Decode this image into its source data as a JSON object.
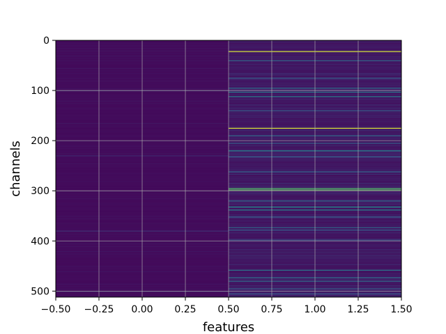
{
  "chart_data": {
    "type": "heatmap",
    "title": "",
    "xlabel": "features",
    "ylabel": "channels",
    "xlim": [
      -0.5,
      1.5
    ],
    "ylim": [
      512,
      0
    ],
    "x_ticks": [
      -0.5,
      -0.25,
      0.0,
      0.25,
      0.5,
      0.75,
      1.0,
      1.25,
      1.5
    ],
    "x_tick_labels": [
      "−0.50",
      "−0.25",
      "0.00",
      "0.25",
      "0.50",
      "0.75",
      "1.00",
      "1.25",
      "1.50"
    ],
    "y_ticks": [
      0,
      100,
      200,
      300,
      400,
      500
    ],
    "y_tick_labels": [
      "0",
      "100",
      "200",
      "300",
      "400",
      "500"
    ],
    "grid": true,
    "colormap": "viridis",
    "columns": [
      0,
      1
    ],
    "rows": 512,
    "base_values": [
      0.03,
      0.07
    ],
    "highlights": [
      {
        "row": 22,
        "col": 1,
        "value": 0.95
      },
      {
        "row": 40,
        "col": 1,
        "value": 0.35
      },
      {
        "row": 75,
        "col": 1,
        "value": 0.3
      },
      {
        "row": 95,
        "col": 1,
        "value": 0.38
      },
      {
        "row": 103,
        "col": 1,
        "value": 0.42
      },
      {
        "row": 112,
        "col": 1,
        "value": 0.45
      },
      {
        "row": 140,
        "col": 1,
        "value": 0.3
      },
      {
        "row": 175,
        "col": 1,
        "value": 0.95
      },
      {
        "row": 190,
        "col": 1,
        "value": 0.35
      },
      {
        "row": 205,
        "col": 1,
        "value": 0.3
      },
      {
        "row": 220,
        "col": 1,
        "value": 0.45
      },
      {
        "row": 232,
        "col": 1,
        "value": 0.3
      },
      {
        "row": 262,
        "col": 1,
        "value": 0.32
      },
      {
        "row": 295,
        "col": 1,
        "value": 0.7
      },
      {
        "row": 298,
        "col": 1,
        "value": 0.75
      },
      {
        "row": 320,
        "col": 1,
        "value": 0.35
      },
      {
        "row": 332,
        "col": 1,
        "value": 0.5
      },
      {
        "row": 338,
        "col": 1,
        "value": 0.45
      },
      {
        "row": 352,
        "col": 1,
        "value": 0.3
      },
      {
        "row": 373,
        "col": 1,
        "value": 0.35
      },
      {
        "row": 378,
        "col": 1,
        "value": 0.3
      },
      {
        "row": 398,
        "col": 1,
        "value": 0.28
      },
      {
        "row": 458,
        "col": 1,
        "value": 0.4
      },
      {
        "row": 473,
        "col": 1,
        "value": 0.38
      },
      {
        "row": 480,
        "col": 1,
        "value": 0.35
      },
      {
        "row": 495,
        "col": 1,
        "value": 0.3
      },
      {
        "row": 505,
        "col": 1,
        "value": 0.28
      },
      {
        "row": 100,
        "col": 0,
        "value": 0.12
      },
      {
        "row": 230,
        "col": 0,
        "value": 0.12
      },
      {
        "row": 380,
        "col": 0,
        "value": 0.15
      },
      {
        "row": 500,
        "col": 0,
        "value": 0.15
      }
    ]
  }
}
